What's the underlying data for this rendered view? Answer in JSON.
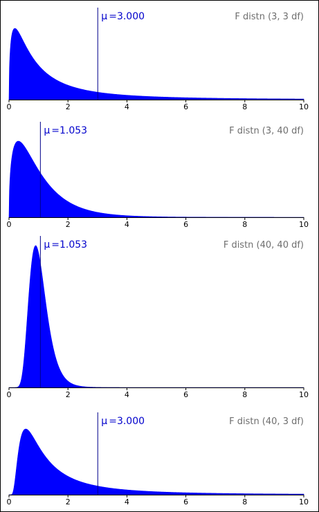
{
  "colors": {
    "fill": "#0000ff",
    "mean_line": "#00008b",
    "mean_text": "#0000cc",
    "label_text": "#6e6e6e",
    "axis": "#000000"
  },
  "mu_symbol": "μ",
  "mu_eq": "=",
  "chart_data": [
    {
      "type": "area",
      "title": "F distn (3, 3 df)",
      "df1": 3,
      "df2": 3,
      "mean": 3.0,
      "mean_label": "3.000",
      "xlim": [
        0,
        10
      ],
      "x_ticks": [
        "0",
        "2",
        "4",
        "6",
        "8",
        "10"
      ],
      "peak_x": 0.2,
      "peak_density": 0.36
    },
    {
      "type": "area",
      "title": "F distn (3, 40 df)",
      "df1": 3,
      "df2": 40,
      "mean": 1.053,
      "mean_label": "1.053",
      "xlim": [
        0,
        10
      ],
      "x_ticks": [
        "0",
        "2",
        "4",
        "6",
        "8",
        "10"
      ],
      "peak_x": 0.32,
      "peak_density": 0.71
    },
    {
      "type": "area",
      "title": "F distn (40, 40 df)",
      "df1": 40,
      "df2": 40,
      "mean": 1.053,
      "mean_label": "1.053",
      "xlim": [
        0,
        10
      ],
      "x_ticks": [
        "0",
        "2",
        "4",
        "6",
        "8",
        "10"
      ],
      "peak_x": 0.95,
      "peak_density": 1.25
    },
    {
      "type": "area",
      "title": "F distn (40, 3 df)",
      "df1": 40,
      "df2": 3,
      "mean": 3.0,
      "mean_label": "3.000",
      "xlim": [
        0,
        10
      ],
      "x_ticks": [
        "0",
        "2",
        "4",
        "6",
        "8",
        "10"
      ],
      "peak_x": 0.6,
      "peak_density": 0.48
    }
  ]
}
